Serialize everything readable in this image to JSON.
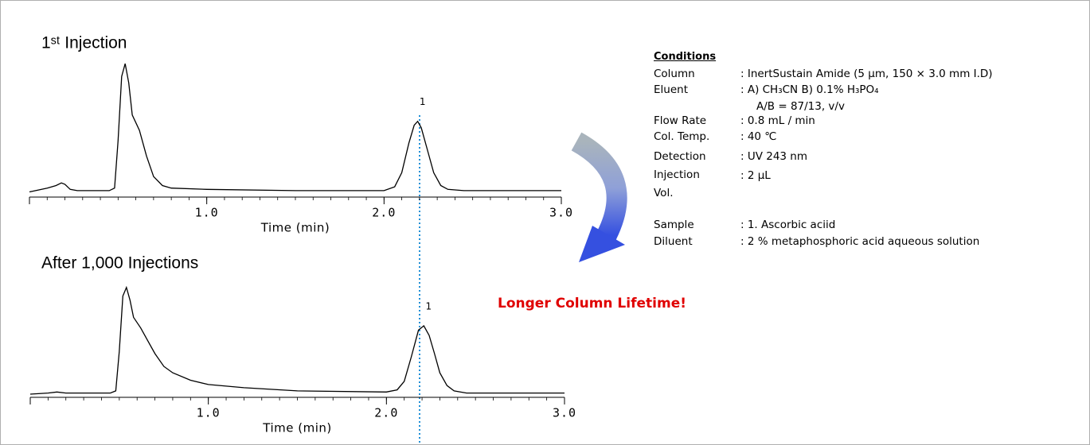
{
  "chart_data": [
    {
      "type": "line",
      "title": "1ˢᵗ Injection",
      "x_label": "Time (min)",
      "x": [
        0,
        0.1,
        0.15,
        0.18,
        0.2,
        0.23,
        0.27,
        0.45,
        0.48,
        0.5,
        0.52,
        0.54,
        0.56,
        0.58,
        0.62,
        0.66,
        0.7,
        0.75,
        0.8,
        1.0,
        1.5,
        2.0,
        2.06,
        2.1,
        2.14,
        2.17,
        2.19,
        2.21,
        2.24,
        2.28,
        2.32,
        2.36,
        2.45,
        2.7,
        3.0
      ],
      "values": [
        0,
        3,
        5,
        7,
        6,
        2,
        1,
        1,
        3,
        40,
        90,
        100,
        85,
        60,
        48,
        28,
        12,
        5,
        3,
        2,
        1,
        1,
        4,
        15,
        38,
        52,
        55,
        50,
        35,
        15,
        5,
        2,
        1,
        1,
        1
      ],
      "color": "#000000",
      "annotations": [
        "1"
      ],
      "xlim": [
        0,
        3
      ],
      "xticks": [
        {
          "value": 1,
          "label": "1.0"
        },
        {
          "value": 2,
          "label": "2.0"
        },
        {
          "value": 3,
          "label": "3.0"
        }
      ],
      "ylim": [
        -4,
        105
      ]
    },
    {
      "type": "line",
      "title": "After 1,000 Injections",
      "x_label": "Time (min)",
      "x": [
        0,
        0.1,
        0.15,
        0.2,
        0.3,
        0.45,
        0.48,
        0.5,
        0.52,
        0.54,
        0.56,
        0.58,
        0.62,
        0.66,
        0.7,
        0.75,
        0.8,
        0.9,
        1.0,
        1.2,
        1.5,
        2.0,
        2.06,
        2.1,
        2.14,
        2.18,
        2.21,
        2.24,
        2.27,
        2.3,
        2.34,
        2.38,
        2.45,
        2.7,
        3.0
      ],
      "values": [
        0,
        1,
        2,
        1,
        1,
        1,
        3,
        40,
        92,
        100,
        88,
        72,
        62,
        50,
        38,
        26,
        20,
        13,
        9,
        6,
        3,
        2,
        4,
        12,
        35,
        60,
        64,
        55,
        38,
        20,
        8,
        3,
        1,
        1,
        1
      ],
      "color": "#000000",
      "annotations": [
        "1"
      ],
      "xlim": [
        0,
        3
      ],
      "xticks": [
        {
          "value": 1,
          "label": "1.0"
        },
        {
          "value": 2,
          "label": "2.0"
        },
        {
          "value": 3,
          "label": "3.0"
        }
      ],
      "ylim": [
        -3,
        105
      ]
    }
  ],
  "message": "Longer Column Lifetime!",
  "conditions": {
    "title": "Conditions",
    "rows": [
      {
        "label": "Column",
        "value": ": InertSustain Amide (5 µm, 150 × 3.0 mm I.D)"
      },
      {
        "label": "Eluent",
        "value": ": A) CH₃CN    B) 0.1% H₃PO₄"
      },
      {
        "value": "A/B  = 87/13, v/v"
      },
      {
        "label": "Flow Rate",
        "value": ": 0.8 mL / min"
      },
      {
        "label": "Col. Temp.",
        "value": ": 40 ℃"
      },
      {
        "label": "Detection",
        "value": ": UV 243 nm"
      },
      {
        "label": "Injection Vol.",
        "value": ": 2 µL"
      },
      {
        "label": "Sample",
        "value": ":  1. Ascorbic aciid"
      },
      {
        "label": "Diluent",
        "value": ":  2 % metaphosphoric acid aqueous solution"
      }
    ]
  }
}
